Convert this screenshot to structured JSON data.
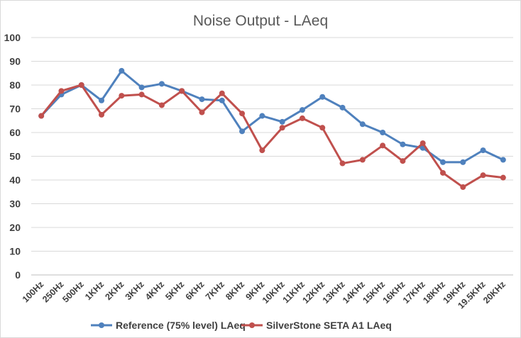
{
  "chart_data": {
    "type": "line",
    "title": "Noise Output - LAeq",
    "xlabel": "",
    "ylabel": "",
    "ylim": [
      0,
      100
    ],
    "yticks": [
      0,
      10,
      20,
      30,
      40,
      50,
      60,
      70,
      80,
      90,
      100
    ],
    "grid": true,
    "legend_position": "bottom",
    "categories": [
      "100Hz",
      "250Hz",
      "500Hz",
      "1KHz",
      "2KHz",
      "3KHz",
      "4KHz",
      "5KHz",
      "6KHz",
      "7KHz",
      "8KHz",
      "9KHz",
      "10KHz",
      "11KHz",
      "12KHz",
      "13KHz",
      "14KHz",
      "15KHz",
      "16KHz",
      "17KHz",
      "18KHz",
      "19KHz",
      "19.5KHz",
      "20KHz"
    ],
    "series": [
      {
        "name": "Reference (75% level) LAeq",
        "color": "#4f81bd",
        "values": [
          67,
          76,
          80,
          73.5,
          86,
          79,
          80.5,
          77.5,
          74,
          73.5,
          60.5,
          67,
          64.5,
          69.5,
          75,
          70.5,
          63.5,
          60,
          55,
          53.5,
          47.5,
          47.5,
          52.5,
          48.5
        ]
      },
      {
        "name": "SilverStone SETA A1 LAeq",
        "color": "#c0504d",
        "values": [
          67,
          77.5,
          80,
          67.5,
          75.5,
          76,
          71.5,
          77.5,
          68.5,
          76.5,
          68,
          52.5,
          62,
          66,
          62,
          47,
          48.5,
          54.5,
          48,
          55.5,
          43,
          37,
          42,
          41
        ]
      }
    ]
  }
}
